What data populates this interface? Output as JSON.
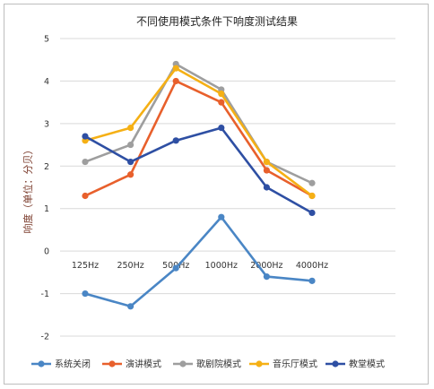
{
  "chart_data": {
    "type": "line",
    "title": "不同使用模式条件下响度测试结果",
    "ylabel": "响度（单位：分贝）",
    "xlabel": "",
    "categories": [
      "125Hz",
      "250Hz",
      "500Hz",
      "1000Hz",
      "2000Hz",
      "4000Hz"
    ],
    "ylim": [
      -2,
      5
    ],
    "yticks": [
      "-2",
      "-1",
      "0",
      "1",
      "2",
      "3",
      "4",
      "5"
    ],
    "grid": true,
    "legend_position": "bottom",
    "series": [
      {
        "name": "系统关闭",
        "color": "#4a86c5",
        "values": [
          -1.0,
          -1.3,
          -0.4,
          0.8,
          -0.6,
          -0.7
        ]
      },
      {
        "name": "演讲模式",
        "color": "#e8602c",
        "values": [
          1.3,
          1.8,
          4.0,
          3.5,
          1.9,
          1.3
        ]
      },
      {
        "name": "歌剧院模式",
        "color": "#9e9e9e",
        "values": [
          2.1,
          2.5,
          4.4,
          3.8,
          2.1,
          1.6
        ]
      },
      {
        "name": "音乐厅模式",
        "color": "#f5b015",
        "values": [
          2.6,
          2.9,
          4.3,
          3.7,
          2.1,
          1.3
        ]
      },
      {
        "name": "教堂模式",
        "color": "#2e4fa3",
        "values": [
          2.7,
          2.1,
          2.6,
          2.9,
          1.5,
          0.9
        ]
      }
    ]
  }
}
